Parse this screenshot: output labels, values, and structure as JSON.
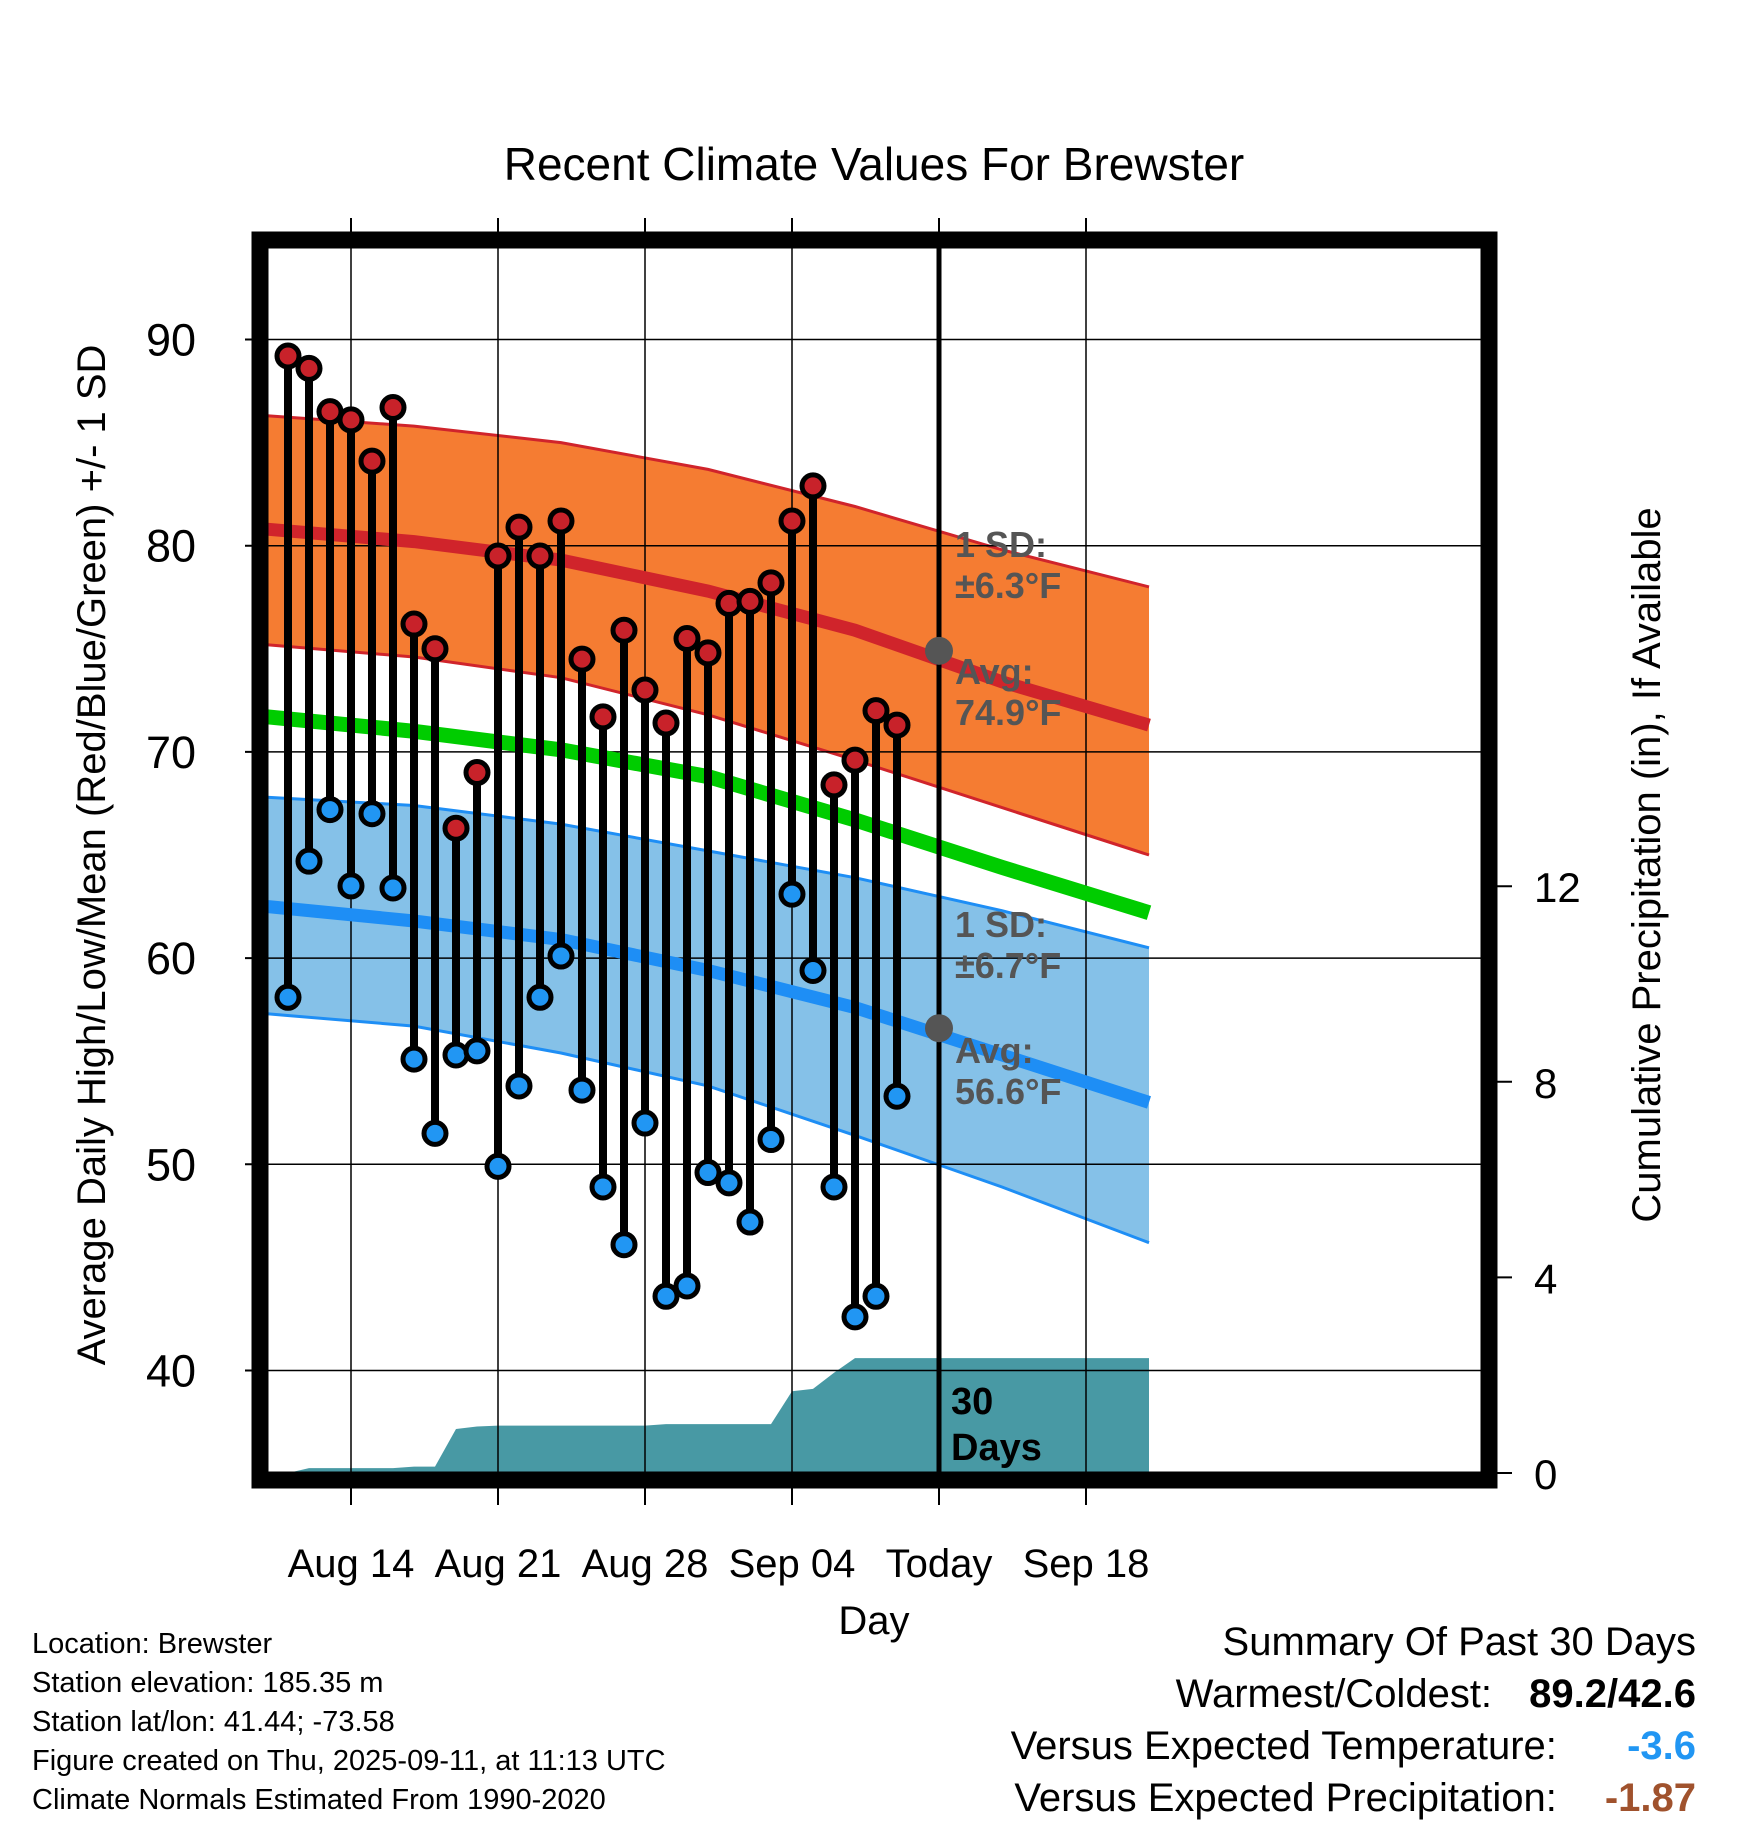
{
  "chart_data": {
    "type": "line",
    "title": "Recent Climate Values For Brewster",
    "xlabel": "Day",
    "ylabel": "Average Daily High/Low/Mean (Red/Blue/Green) +/- 1 SD",
    "y2label": "Cumulative Precipitation (in), If Available",
    "ylim": [
      35,
      95
    ],
    "y2lim": [
      0,
      17.5
    ],
    "yticks": [
      40,
      50,
      60,
      70,
      80,
      90
    ],
    "y2ticks": [
      0,
      4,
      8,
      12
    ],
    "xlim": [
      "2025-08-10",
      "2025-09-21"
    ],
    "xticks": [
      {
        "date": "2025-08-14",
        "label": "Aug 14"
      },
      {
        "date": "2025-08-21",
        "label": "Aug 21"
      },
      {
        "date": "2025-08-28",
        "label": "Aug 28"
      },
      {
        "date": "2025-09-04",
        "label": "Sep 04"
      },
      {
        "date": "2025-09-11",
        "label": "Today"
      },
      {
        "date": "2025-09-18",
        "label": "Sep 18"
      }
    ],
    "grid": true,
    "colors": {
      "high_band": "#f57c32",
      "high_mean": "#d0242b",
      "low_band": "#85c1e8",
      "low_mean": "#1e8ef5",
      "mean_line": "#00cc00",
      "precip": "#4899a4",
      "high_marker": "#c8222a",
      "low_marker": "#2196f3",
      "annotation": "#555555"
    },
    "normals": {
      "dates": [
        "2025-08-10",
        "2025-08-17",
        "2025-08-24",
        "2025-08-31",
        "2025-09-07",
        "2025-09-14",
        "2025-09-21"
      ],
      "high_mean": [
        80.8,
        80.2,
        79.3,
        77.8,
        75.9,
        73.4,
        71.3
      ],
      "high_upper": [
        86.3,
        85.8,
        85.0,
        83.7,
        81.9,
        79.8,
        78.0
      ],
      "high_lower": [
        75.2,
        74.6,
        73.6,
        71.8,
        69.6,
        67.3,
        65.0
      ],
      "low_mean": [
        62.5,
        61.8,
        60.9,
        59.4,
        57.6,
        55.3,
        53.0
      ],
      "low_upper": [
        67.8,
        67.4,
        66.5,
        65.2,
        63.9,
        62.3,
        60.5
      ],
      "low_lower": [
        57.3,
        56.7,
        55.4,
        53.8,
        51.4,
        48.9,
        46.2
      ],
      "mean": [
        71.7,
        71.0,
        70.1,
        68.8,
        66.7,
        64.4,
        62.2
      ]
    },
    "series": [
      {
        "name": "High",
        "x": [
          "2025-08-11",
          "2025-08-12",
          "2025-08-13",
          "2025-08-14",
          "2025-08-15",
          "2025-08-16",
          "2025-08-17",
          "2025-08-18",
          "2025-08-19",
          "2025-08-20",
          "2025-08-21",
          "2025-08-22",
          "2025-08-23",
          "2025-08-24",
          "2025-08-25",
          "2025-08-26",
          "2025-08-27",
          "2025-08-28",
          "2025-08-29",
          "2025-08-30",
          "2025-08-31",
          "2025-09-01",
          "2025-09-02",
          "2025-09-03",
          "2025-09-04",
          "2025-09-05",
          "2025-09-06",
          "2025-09-07",
          "2025-09-08",
          "2025-09-09",
          "2025-09-10"
        ],
        "values": [
          89.2,
          88.6,
          86.5,
          86.1,
          84.1,
          86.7,
          76.2,
          75.0,
          66.3,
          69.0,
          79.5,
          80.9,
          79.5,
          81.2,
          74.5,
          71.7,
          75.9,
          73.0,
          71.4,
          75.5,
          74.8,
          77.2,
          77.3,
          78.2,
          81.2,
          82.9,
          68.4,
          69.6,
          72.0,
          71.3,
          null
        ]
      },
      {
        "name": "Low",
        "x": [
          "2025-08-11",
          "2025-08-12",
          "2025-08-13",
          "2025-08-14",
          "2025-08-15",
          "2025-08-16",
          "2025-08-17",
          "2025-08-18",
          "2025-08-19",
          "2025-08-20",
          "2025-08-21",
          "2025-08-22",
          "2025-08-23",
          "2025-08-24",
          "2025-08-25",
          "2025-08-26",
          "2025-08-27",
          "2025-08-28",
          "2025-08-29",
          "2025-08-30",
          "2025-08-31",
          "2025-09-01",
          "2025-09-02",
          "2025-09-03",
          "2025-09-04",
          "2025-09-05",
          "2025-09-06",
          "2025-09-07",
          "2025-09-08",
          "2025-09-09",
          "2025-09-10"
        ],
        "values": [
          58.1,
          64.7,
          67.2,
          63.5,
          67.0,
          63.4,
          55.1,
          51.5,
          55.3,
          55.5,
          49.9,
          53.8,
          58.1,
          60.1,
          53.6,
          48.9,
          46.1,
          52.0,
          43.6,
          44.1,
          49.6,
          49.1,
          47.2,
          51.2,
          63.1,
          59.4,
          48.9,
          42.6,
          43.6,
          53.3,
          null
        ]
      },
      {
        "name": "Cumulative Precipitation",
        "x": [
          "2025-08-10",
          "2025-08-11",
          "2025-08-12",
          "2025-08-13",
          "2025-08-14",
          "2025-08-15",
          "2025-08-16",
          "2025-08-17",
          "2025-08-18",
          "2025-08-19",
          "2025-08-20",
          "2025-08-21",
          "2025-08-22",
          "2025-08-23",
          "2025-08-24",
          "2025-08-25",
          "2025-08-26",
          "2025-08-27",
          "2025-08-28",
          "2025-08-29",
          "2025-08-30",
          "2025-08-31",
          "2025-09-01",
          "2025-09-02",
          "2025-09-03",
          "2025-09-04",
          "2025-09-05",
          "2025-09-06",
          "2025-09-07",
          "2025-09-08",
          "2025-09-09",
          "2025-09-10",
          "2025-09-11",
          "2025-09-21"
        ],
        "values": [
          0,
          0,
          0.1,
          0.1,
          0.1,
          0.1,
          0.1,
          0.13,
          0.13,
          0.9,
          0.95,
          0.97,
          0.97,
          0.97,
          0.97,
          0.97,
          0.97,
          0.97,
          0.97,
          1.0,
          1.0,
          1.0,
          1.0,
          1.0,
          1.0,
          1.67,
          1.72,
          2.05,
          2.35,
          2.35,
          2.35,
          2.35,
          2.35,
          2.35
        ]
      }
    ],
    "annotations": {
      "today_date": "2025-09-11",
      "high_sd_label": "1 SD:",
      "high_sd_value": "±6.3°F",
      "high_avg_label": "Avg:",
      "high_avg_value": "74.9°F",
      "high_avg_point": 74.9,
      "low_sd_label": "1 SD:",
      "low_sd_value": "±6.7°F",
      "low_avg_label": "Avg:",
      "low_avg_value": "56.6°F",
      "low_avg_point": 56.6,
      "window_label_1": "30",
      "window_label_2": "Days"
    }
  },
  "footer": {
    "location": "Location: Brewster",
    "elevation": "Station elevation: 185.35 m",
    "latlon": "Station lat/lon: 41.44; -73.58",
    "created": "Figure created on Thu, 2025-09-11, at 11:13 UTC",
    "normals": "Climate Normals Estimated From 1990-2020"
  },
  "summary": {
    "title": "Summary Of Past 30 Days",
    "warmest_label": "Warmest/Coldest:",
    "warmest_value": "89.2/42.6",
    "temp_label": "Versus Expected Temperature:",
    "temp_value": "-3.6",
    "temp_color": "#2196f3",
    "precip_label": "Versus Expected Precipitation:",
    "precip_value": "-1.87",
    "precip_color": "#a0522d"
  }
}
